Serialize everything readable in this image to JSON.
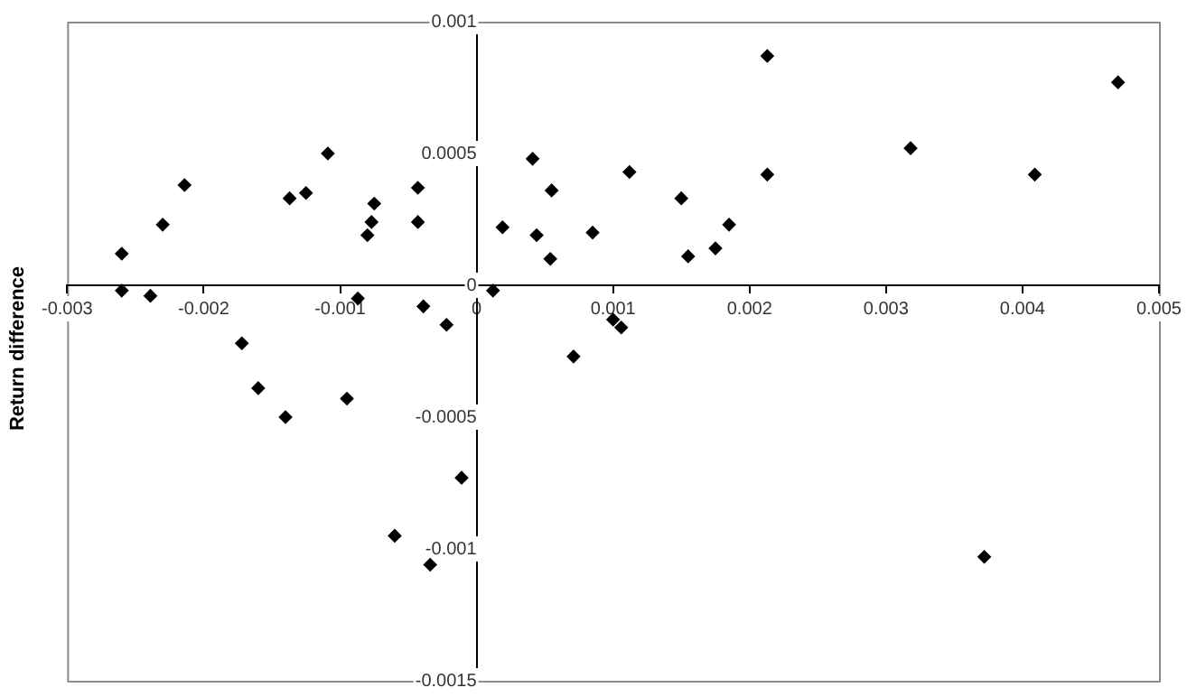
{
  "chart_data": {
    "type": "scatter",
    "ylabel": "Return difference",
    "xlim": [
      -0.003,
      0.005
    ],
    "xticks": [
      -0.003,
      -0.002,
      -0.001,
      0,
      0.001,
      0.002,
      0.003,
      0.004,
      0.005
    ],
    "ylim": [
      -0.0015,
      0.001
    ],
    "yticks": [
      -0.0015,
      -0.001,
      -0.0005,
      0,
      0.0005,
      0.001
    ],
    "grid": false,
    "legend": false,
    "marker": "diamond",
    "series": [
      {
        "color": "#000000",
        "x": [
          -0.0026,
          -0.0026,
          -0.00239,
          -0.0023,
          -0.00214,
          -0.00137,
          -0.00125,
          -0.00109,
          -0.00043,
          -0.00043,
          -0.00075,
          -0.00077,
          -0.0008,
          -0.00087,
          -0.00039,
          -0.00022,
          -0.00172,
          -0.0016,
          -0.0014,
          -0.00095,
          -0.00011,
          -0.0006,
          -0.00034,
          0.00012,
          0.00019,
          0.00041,
          0.00044,
          0.00055,
          0.00054,
          0.00085,
          0.00112,
          0.0015,
          0.00155,
          0.00175,
          0.00185,
          0.00213,
          0.00213,
          0.00318,
          0.00409,
          0.0047,
          0.001,
          0.00106,
          0.00071,
          0.00372
        ],
        "values": [
          0.00012,
          -2e-05,
          -4e-05,
          0.00023,
          0.00038,
          0.00033,
          0.00035,
          0.0005,
          0.00037,
          0.00024,
          0.00031,
          0.00024,
          0.00019,
          -5e-05,
          -8e-05,
          -0.00015,
          -0.00022,
          -0.00039,
          -0.0005,
          -0.00043,
          -0.00073,
          -0.00095,
          -0.00106,
          -2e-05,
          0.00022,
          0.00048,
          0.00019,
          0.00036,
          0.0001,
          0.0002,
          0.00043,
          0.00033,
          0.00011,
          0.00014,
          0.00023,
          0.00087,
          0.00042,
          0.00052,
          0.00042,
          0.00077,
          -0.00013,
          -0.00016,
          -0.00027,
          -0.00103
        ]
      }
    ]
  }
}
